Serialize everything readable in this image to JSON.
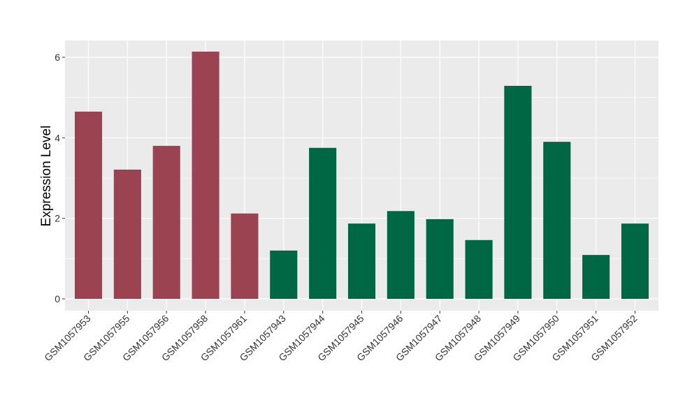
{
  "chart_data": {
    "type": "bar",
    "title": "",
    "xlabel": "",
    "ylabel": "Expression Level",
    "ylim": [
      -0.3,
      6.45
    ],
    "yticks": [
      0,
      2,
      4,
      6
    ],
    "grid": true,
    "legend": "none",
    "categories": [
      "GSM1057953",
      "GSM1057955",
      "GSM1057956",
      "GSM1057958",
      "GSM1057961",
      "GSM1057943",
      "GSM1057944",
      "GSM1057945",
      "GSM1057946",
      "GSM1057947",
      "GSM1057948",
      "GSM1057949",
      "GSM1057950",
      "GSM1057951",
      "GSM1057952"
    ],
    "values": [
      4.65,
      3.21,
      3.8,
      6.14,
      2.12,
      1.2,
      3.75,
      1.87,
      2.18,
      1.98,
      1.46,
      5.29,
      3.9,
      1.09,
      1.87
    ],
    "groups": [
      "a",
      "a",
      "a",
      "a",
      "a",
      "b",
      "b",
      "b",
      "b",
      "b",
      "b",
      "b",
      "b",
      "b",
      "b"
    ],
    "colors": {
      "a": "#9B4350",
      "b": "#006745"
    },
    "panel_color": "#EBEBEB"
  }
}
